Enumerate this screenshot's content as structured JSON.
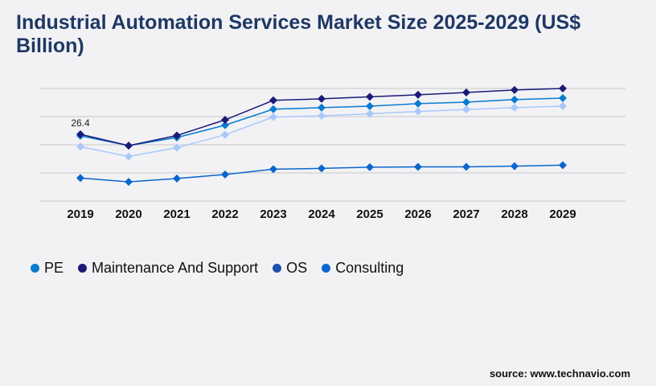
{
  "chart_data": {
    "type": "line",
    "title": "Industrial Automation Services Market Size 2025-2029 (US$ Billion)",
    "xlabel": "",
    "ylabel": "",
    "categories": [
      "2019",
      "2020",
      "2021",
      "2022",
      "2023",
      "2024",
      "2025",
      "2026",
      "2027",
      "2028",
      "2029"
    ],
    "ylim": [
      0,
      44.5
    ],
    "grid": true,
    "legend_position": "bottom-left",
    "series": [
      {
        "name": "PE",
        "color": "#0a7ad0",
        "values": [
          25.8,
          21.9,
          25.1,
          30.0,
          36.3,
          36.9,
          37.5,
          38.5,
          39.1,
          40.1,
          40.7
        ]
      },
      {
        "name": "Maintenance And Support",
        "color": "#1a1a78",
        "values": [
          26.4,
          21.9,
          25.9,
          32.1,
          39.8,
          40.4,
          41.2,
          42.0,
          42.9,
          43.9,
          44.5
        ]
      },
      {
        "name": "OS",
        "color": "#a9c8fa",
        "values": [
          21.5,
          17.6,
          21.1,
          26.2,
          33.2,
          33.7,
          34.5,
          35.4,
          36.2,
          36.9,
          37.5
        ]
      },
      {
        "name": "Consulting",
        "color": "#0a66cc",
        "values": [
          9.1,
          7.6,
          8.9,
          10.5,
          12.6,
          12.9,
          13.4,
          13.5,
          13.5,
          13.8,
          14.2
        ]
      }
    ],
    "legend_colors": [
      "#0a7ad0",
      "#1a1a78",
      "#1f4fa8",
      "#0a66cc"
    ],
    "annotations": [
      {
        "series": "Maintenance And Support",
        "category": "2019",
        "text": "26.4"
      }
    ]
  },
  "source": "source: www.technavio.com"
}
